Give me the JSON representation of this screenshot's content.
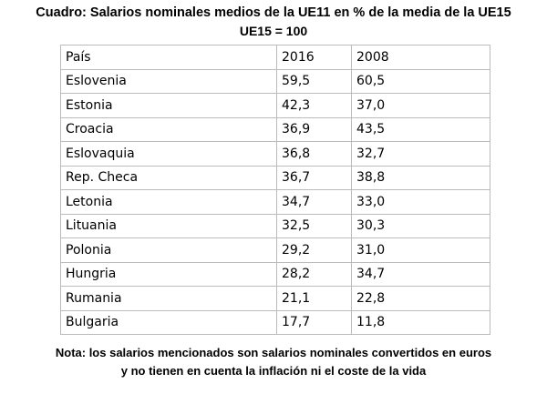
{
  "header": {
    "title": "Cuadro: Salarios nominales medios de la UE11 en % de la media de la UE15",
    "subtitle": "UE15 = 100"
  },
  "table": {
    "columns": [
      "País",
      "2016",
      "2008"
    ],
    "rows": [
      [
        "Eslovenia",
        "59,5",
        "60,5"
      ],
      [
        "Estonia",
        "42,3",
        "37,0"
      ],
      [
        "Croacia",
        "36,9",
        "43,5"
      ],
      [
        "Eslovaquia",
        "36,8",
        "32,7"
      ],
      [
        "Rep. Checa",
        "36,7",
        "38,8"
      ],
      [
        "Letonia",
        "34,7",
        "33,0"
      ],
      [
        "Lituania",
        "32,5",
        "30,3"
      ],
      [
        "Polonia",
        "29,2",
        "31,0"
      ],
      [
        "Hungria",
        "28,2",
        "34,7"
      ],
      [
        "Rumania",
        "21,1",
        "22,8"
      ],
      [
        "Bulgaria",
        "17,7",
        "11,8"
      ]
    ]
  },
  "note": {
    "line1": "Nota: los salarios mencionados son salarios nominales convertidos en euros",
    "line2": "y no tienen en cuenta la inflación ni el coste de la vida"
  }
}
